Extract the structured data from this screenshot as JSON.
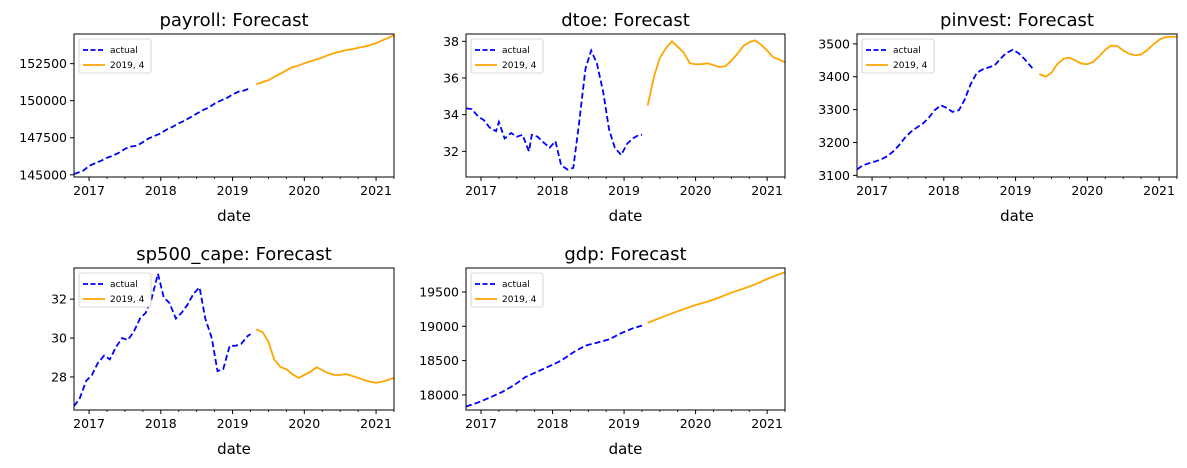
{
  "chart_data": [
    {
      "type": "line",
      "title": "payroll: Forecast",
      "xlabel": "date",
      "xlim": [
        2016.79,
        2021.25
      ],
      "ylim": [
        144850,
        154500
      ],
      "xticks": [
        2017,
        2018,
        2019,
        2020,
        2021
      ],
      "yticks": [
        145000,
        147500,
        150000,
        152500
      ],
      "ytick_labels": [
        "145000",
        "147500",
        "150000",
        "152500"
      ],
      "legend": {
        "location": "upper-left",
        "entries": [
          "actual",
          "2019, 4"
        ]
      },
      "series": [
        {
          "name": "actual",
          "style": "dashed",
          "color": "#0000ff",
          "x": [
            2016.79,
            2016.92,
            2017.0,
            2017.08,
            2017.17,
            2017.25,
            2017.33,
            2017.42,
            2017.5,
            2017.58,
            2017.67,
            2017.75,
            2017.83,
            2017.92,
            2018.0,
            2018.08,
            2018.17,
            2018.25,
            2018.33,
            2018.42,
            2018.5,
            2018.58,
            2018.67,
            2018.75,
            2018.83,
            2018.92,
            2019.0,
            2019.08,
            2019.17,
            2019.25
          ],
          "y": [
            145050,
            145280,
            145600,
            145770,
            145950,
            146150,
            146280,
            146500,
            146750,
            146900,
            146970,
            147200,
            147450,
            147640,
            147800,
            148050,
            148250,
            148470,
            148650,
            148900,
            149120,
            149350,
            149540,
            149800,
            150000,
            150180,
            150420,
            150600,
            150700,
            150850
          ]
        },
        {
          "name": "2019, 4",
          "style": "solid",
          "color": "#ffa500",
          "x": [
            2019.33,
            2019.42,
            2019.5,
            2019.58,
            2019.67,
            2019.75,
            2019.83,
            2019.92,
            2020.0,
            2020.08,
            2020.17,
            2020.25,
            2020.33,
            2020.42,
            2020.5,
            2020.58,
            2020.67,
            2020.75,
            2020.83,
            2020.92,
            2021.0,
            2021.08,
            2021.17,
            2021.25
          ],
          "y": [
            151100,
            151250,
            151380,
            151600,
            151830,
            152050,
            152250,
            152370,
            152520,
            152650,
            152780,
            152910,
            153070,
            153220,
            153310,
            153410,
            153480,
            153570,
            153640,
            153760,
            153880,
            154060,
            154240,
            154420
          ]
        }
      ]
    },
    {
      "type": "line",
      "title": "dtoe: Forecast",
      "xlabel": "date",
      "xlim": [
        2016.79,
        2021.25
      ],
      "ylim": [
        30.6,
        38.4
      ],
      "xticks": [
        2017,
        2018,
        2019,
        2020,
        2021
      ],
      "yticks": [
        32,
        34,
        36,
        38
      ],
      "ytick_labels": [
        "32",
        "34",
        "36",
        "38"
      ],
      "legend": {
        "location": "upper-left",
        "entries": [
          "actual",
          "2019, 4"
        ]
      },
      "series": [
        {
          "name": "actual",
          "style": "dashed",
          "color": "#0000ff",
          "x": [
            2016.79,
            2016.87,
            2016.96,
            2017.04,
            2017.12,
            2017.21,
            2017.25,
            2017.33,
            2017.42,
            2017.5,
            2017.58,
            2017.67,
            2017.71,
            2017.79,
            2017.87,
            2017.96,
            2018.04,
            2018.12,
            2018.21,
            2018.29,
            2018.37,
            2018.46,
            2018.54,
            2018.62,
            2018.71,
            2018.79,
            2018.87,
            2018.96,
            2019.04,
            2019.12,
            2019.21,
            2019.25
          ],
          "y": [
            34.35,
            34.3,
            33.9,
            33.7,
            33.3,
            33.1,
            33.6,
            32.7,
            33.0,
            32.8,
            32.9,
            32.0,
            32.9,
            32.8,
            32.5,
            32.2,
            32.55,
            31.25,
            31.0,
            31.1,
            33.5,
            36.5,
            37.5,
            36.8,
            35.2,
            33.2,
            32.2,
            31.8,
            32.4,
            32.7,
            32.9,
            32.9
          ]
        },
        {
          "name": "2019, 4",
          "style": "solid",
          "color": "#ffa500",
          "x": [
            2019.33,
            2019.42,
            2019.5,
            2019.58,
            2019.67,
            2019.75,
            2019.83,
            2019.92,
            2020.0,
            2020.08,
            2020.17,
            2020.25,
            2020.33,
            2020.42,
            2020.5,
            2020.58,
            2020.67,
            2020.75,
            2020.83,
            2020.92,
            2021.0,
            2021.08,
            2021.17,
            2021.25
          ],
          "y": [
            34.5,
            36.1,
            37.1,
            37.6,
            38.0,
            37.7,
            37.4,
            36.8,
            36.75,
            36.75,
            36.8,
            36.7,
            36.6,
            36.65,
            36.95,
            37.3,
            37.75,
            37.95,
            38.05,
            37.8,
            37.5,
            37.15,
            37.0,
            36.85
          ]
        }
      ]
    },
    {
      "type": "line",
      "title": "pinvest: Forecast",
      "xlabel": "date",
      "xlim": [
        2016.79,
        2021.25
      ],
      "ylim": [
        3095,
        3530
      ],
      "xticks": [
        2017,
        2018,
        2019,
        2020,
        2021
      ],
      "yticks": [
        3100,
        3200,
        3300,
        3400,
        3500
      ],
      "ytick_labels": [
        "3100",
        "3200",
        "3300",
        "3400",
        "3500"
      ],
      "legend": {
        "location": "upper-left",
        "entries": [
          "actual",
          "2019, 4"
        ]
      },
      "series": [
        {
          "name": "actual",
          "style": "dashed",
          "color": "#0000ff",
          "x": [
            2016.79,
            2016.87,
            2016.96,
            2017.04,
            2017.12,
            2017.21,
            2017.29,
            2017.37,
            2017.46,
            2017.54,
            2017.62,
            2017.71,
            2017.79,
            2017.87,
            2017.96,
            2018.04,
            2018.12,
            2018.21,
            2018.29,
            2018.37,
            2018.46,
            2018.54,
            2018.62,
            2018.71,
            2018.79,
            2018.87,
            2018.96,
            2019.04,
            2019.12,
            2019.21,
            2019.25
          ],
          "y": [
            3118,
            3130,
            3137,
            3142,
            3148,
            3158,
            3172,
            3190,
            3215,
            3232,
            3245,
            3258,
            3275,
            3298,
            3313,
            3305,
            3293,
            3298,
            3330,
            3375,
            3412,
            3422,
            3428,
            3435,
            3455,
            3472,
            3482,
            3472,
            3455,
            3432,
            3422
          ]
        },
        {
          "name": "2019, 4",
          "style": "solid",
          "color": "#ffa500",
          "x": [
            2019.33,
            2019.42,
            2019.5,
            2019.58,
            2019.67,
            2019.75,
            2019.83,
            2019.92,
            2020.0,
            2020.08,
            2020.17,
            2020.25,
            2020.33,
            2020.42,
            2020.5,
            2020.58,
            2020.67,
            2020.75,
            2020.83,
            2020.92,
            2021.0,
            2021.08,
            2021.17,
            2021.25
          ],
          "y": [
            3408,
            3400,
            3412,
            3438,
            3455,
            3458,
            3450,
            3440,
            3438,
            3445,
            3463,
            3482,
            3495,
            3493,
            3480,
            3470,
            3465,
            3468,
            3480,
            3498,
            3512,
            3520,
            3522,
            3521
          ]
        }
      ]
    },
    {
      "type": "line",
      "title": "sp500_cape: Forecast",
      "xlabel": "date",
      "xlim": [
        2016.79,
        2021.25
      ],
      "ylim": [
        26.3,
        33.6
      ],
      "xticks": [
        2017,
        2018,
        2019,
        2020,
        2021
      ],
      "yticks": [
        28,
        30,
        32
      ],
      "ytick_labels": [
        "28",
        "30",
        "32"
      ],
      "legend": {
        "location": "upper-left",
        "entries": [
          "actual",
          "2019, 4"
        ]
      },
      "series": [
        {
          "name": "actual",
          "style": "dashed",
          "color": "#0000ff",
          "x": [
            2016.79,
            2016.87,
            2016.96,
            2017.04,
            2017.12,
            2017.21,
            2017.29,
            2017.37,
            2017.46,
            2017.54,
            2017.62,
            2017.71,
            2017.79,
            2017.87,
            2017.96,
            2018.04,
            2018.12,
            2018.21,
            2018.29,
            2018.37,
            2018.46,
            2018.54,
            2018.62,
            2018.71,
            2018.79,
            2018.87,
            2018.96,
            2019.04,
            2019.12,
            2019.21,
            2019.25
          ],
          "y": [
            26.5,
            26.9,
            27.8,
            28.1,
            28.7,
            29.1,
            28.9,
            29.5,
            30.0,
            29.9,
            30.3,
            31.0,
            31.3,
            32.0,
            33.3,
            32.1,
            31.8,
            31.0,
            31.3,
            31.7,
            32.3,
            32.6,
            31.0,
            30.0,
            28.3,
            28.4,
            29.6,
            29.6,
            29.7,
            30.1,
            30.2
          ]
        },
        {
          "name": "2019, 4",
          "style": "solid",
          "color": "#ffa500",
          "x": [
            2019.33,
            2019.42,
            2019.5,
            2019.58,
            2019.67,
            2019.75,
            2019.83,
            2019.92,
            2020.0,
            2020.08,
            2020.17,
            2020.25,
            2020.33,
            2020.42,
            2020.5,
            2020.58,
            2020.67,
            2020.75,
            2020.83,
            2020.92,
            2021.0,
            2021.08,
            2021.17,
            2021.25
          ],
          "y": [
            30.45,
            30.3,
            29.8,
            28.9,
            28.5,
            28.4,
            28.15,
            27.95,
            28.1,
            28.25,
            28.5,
            28.35,
            28.2,
            28.1,
            28.1,
            28.15,
            28.05,
            27.95,
            27.85,
            27.75,
            27.7,
            27.75,
            27.85,
            27.95
          ]
        }
      ]
    },
    {
      "type": "line",
      "title": "gdp: Forecast",
      "xlabel": "date",
      "xlim": [
        2016.79,
        2021.25
      ],
      "ylim": [
        17780,
        19850
      ],
      "xticks": [
        2017,
        2018,
        2019,
        2020,
        2021
      ],
      "yticks": [
        18000,
        18500,
        19000,
        19500
      ],
      "ytick_labels": [
        "18000",
        "18500",
        "19000",
        "19500"
      ],
      "legend": {
        "location": "upper-left",
        "entries": [
          "actual",
          "2019, 4"
        ]
      },
      "series": [
        {
          "name": "actual",
          "style": "dashed",
          "color": "#0000ff",
          "x": [
            2016.79,
            2016.96,
            2017.12,
            2017.29,
            2017.46,
            2017.62,
            2017.79,
            2017.96,
            2018.12,
            2018.29,
            2018.46,
            2018.62,
            2018.79,
            2018.96,
            2019.12,
            2019.25
          ],
          "y": [
            17830,
            17890,
            17960,
            18040,
            18140,
            18260,
            18340,
            18420,
            18500,
            18620,
            18720,
            18760,
            18810,
            18900,
            18970,
            19010
          ]
        },
        {
          "name": "2019, 4",
          "style": "solid",
          "color": "#ffa500",
          "x": [
            2019.33,
            2019.5,
            2019.67,
            2019.83,
            2020.0,
            2020.17,
            2020.33,
            2020.5,
            2020.67,
            2020.83,
            2021.0,
            2021.12,
            2021.25
          ],
          "y": [
            19050,
            19120,
            19190,
            19250,
            19310,
            19360,
            19420,
            19490,
            19550,
            19610,
            19690,
            19740,
            19790
          ]
        }
      ]
    }
  ]
}
